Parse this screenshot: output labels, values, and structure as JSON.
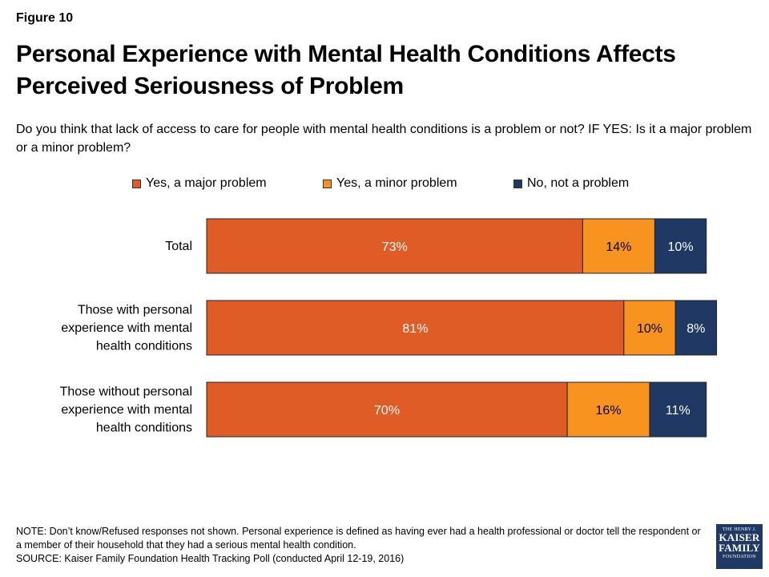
{
  "figure_label": "Figure 10",
  "title": "Personal Experience with Mental Health Conditions Affects Perceived Seriousness of Problem",
  "subtitle": "Do you think that lack of access to care for people with mental health conditions is a problem or not? IF YES: Is it a major problem or a minor problem?",
  "chart_data": {
    "type": "bar",
    "orientation": "horizontal",
    "stacked": true,
    "categories": [
      [
        "Total"
      ],
      [
        "Those with personal",
        "experience with mental",
        "health conditions"
      ],
      [
        "Those without personal",
        "experience with mental",
        "health conditions"
      ]
    ],
    "series": [
      {
        "name": "Yes, a major problem",
        "values": [
          73,
          81,
          70
        ],
        "color": "#e05c27",
        "label_color": "#ffffff"
      },
      {
        "name": "Yes, a minor problem",
        "values": [
          14,
          10,
          16
        ],
        "color": "#f7931e",
        "label_color": "#000000"
      },
      {
        "name": "No, not a problem",
        "values": [
          10,
          8,
          11
        ],
        "color": "#1f3864",
        "label_color": "#ffffff"
      }
    ],
    "value_suffix": "%",
    "xlim": [
      0,
      100
    ],
    "grid": false,
    "legend_position": "top"
  },
  "footer": {
    "note": "NOTE: Don’t know/Refused responses not shown. Personal experience is defined as having ever had a health professional or doctor tell the respondent or a member of their household that they had a serious mental health condition.",
    "source": "SOURCE: Kaiser Family Foundation Health Tracking Poll (conducted April 12-19, 2016)"
  },
  "logo": {
    "line1": "THE HENRY J.",
    "line2": "KAISER",
    "line3": "FAMILY",
    "line4": "FOUNDATION"
  }
}
